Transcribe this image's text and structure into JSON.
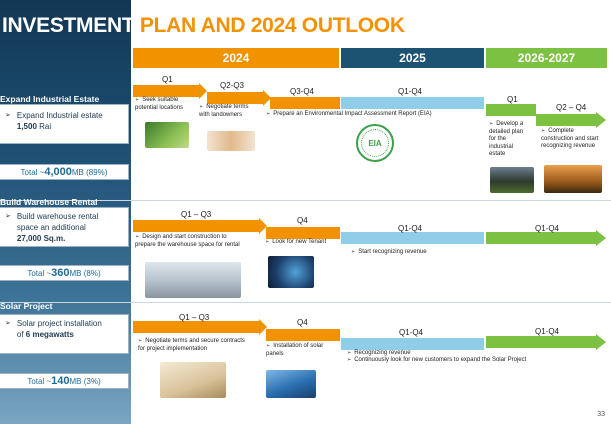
{
  "title": {
    "part1": "INVESTMENT ",
    "part2": "PLAN AND 2024 OUTLOOK"
  },
  "headers": {
    "y2024": "2024",
    "y2025": "2025",
    "y2026": "2026-2027"
  },
  "sections": {
    "industrial": {
      "title": "Expand Industrial Estate",
      "bullet_text": "Expand Industrial estate",
      "bullet_value": "1,500",
      "bullet_unit": " Rai",
      "total_prefix": "Total ~",
      "total_value": "4,000",
      "total_suffix": " MB (89%)",
      "quarters": {
        "q1": "Q1",
        "q2q3": "Q2-Q3",
        "q3q4": "Q3-Q4",
        "q1q4_2025": "Q1-Q4",
        "q1_2026": "Q1",
        "q2q4_2026": "Q2 – Q4"
      },
      "tasks": {
        "t1": "Seek suitable potential locations",
        "t2": "Negotiate terms with landowners",
        "t3": "Prepare an Environmental Impact Assessment Report (EIA)",
        "t4": "Develop a detailed plan for the industrial estate",
        "t5": "Complete construction and start recognizing revenue"
      },
      "seal": "EIA"
    },
    "warehouse": {
      "title": "Build Warehouse Rental",
      "bullet_line1": "Build warehouse rental",
      "bullet_line2": "space an additional",
      "bullet_value": "27,000 Sq.m.",
      "total_prefix": "Total ~",
      "total_value": "360",
      "total_suffix": " MB (8%)",
      "quarters": {
        "q1q3": "Q1 – Q3",
        "q4": "Q4",
        "q1q4_2025": "Q1-Q4",
        "q1q4_2026": "Q1-Q4"
      },
      "tasks": {
        "t1": "Design and start construction to prepare the warehouse space for rental",
        "t2": "Look for new Tenant",
        "t3": "Start recognizing revenue"
      }
    },
    "solar": {
      "title": "Solar Project",
      "bullet_line1": "Solar project installation",
      "bullet_prefix": "of ",
      "bullet_value": "6 megawatts",
      "total_prefix": "Total ~",
      "total_value": "140",
      "total_suffix": " MB (3%)",
      "quarters": {
        "q1q3": "Q1 – Q3",
        "q4": "Q4",
        "q1q4_2025": "Q1-Q4",
        "q1q4_2026": "Q1-Q4"
      },
      "tasks": {
        "t1": "Negotiate terms and secure contracts for project implementation",
        "t2": "Installation of solar panels",
        "t3": "Recognizing revenue",
        "t4": "Continuously look for new customers to expand the Solar Project"
      }
    }
  },
  "page_number": "33",
  "colors": {
    "orange": "#f39200",
    "navy": "#1c5373",
    "green": "#7dc142",
    "light_blue": "#8fcde8"
  }
}
